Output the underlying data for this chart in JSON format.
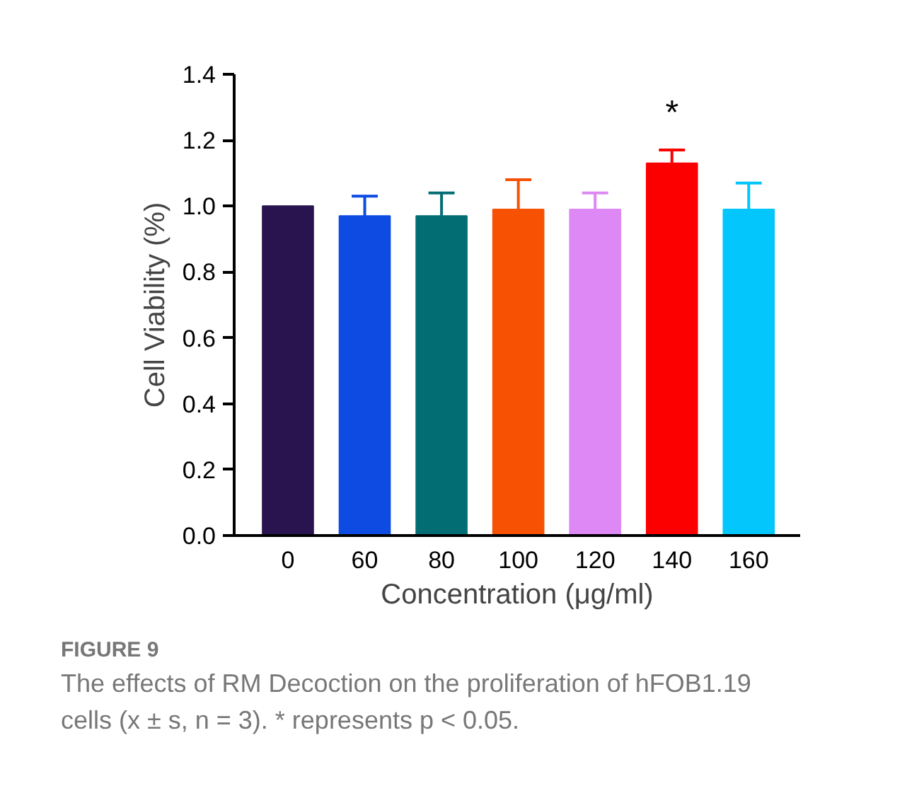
{
  "chart_data": {
    "type": "bar",
    "title": "FIGURE 9",
    "xlabel": "Concentration (μg/ml)",
    "ylabel": "Cell Viability (%)",
    "categories": [
      "0",
      "60",
      "80",
      "100",
      "120",
      "140",
      "160"
    ],
    "values": [
      1.0,
      0.97,
      0.97,
      0.99,
      0.99,
      1.13,
      0.99
    ],
    "errors": [
      null,
      [
        0.97,
        1.03
      ],
      [
        0.97,
        1.04
      ],
      [
        0.99,
        1.08
      ],
      [
        0.99,
        1.04
      ],
      [
        1.13,
        1.17
      ],
      [
        0.99,
        1.07
      ]
    ],
    "colors": [
      "#2a1450",
      "#0d4be3",
      "#026e74",
      "#f75104",
      "#dd88f4",
      "#fc0000",
      "#02c6fc"
    ],
    "ylim": [
      0,
      1.4
    ],
    "yticks": [
      {
        "value": 0,
        "label": "0.0"
      },
      0.2,
      0.4,
      0.6,
      0.8,
      {
        "value": 1.0,
        "label": "1.0"
      },
      1.2,
      1.4
    ],
    "grid": false,
    "annotations": [
      "*",
      "The effects of RM Decoction on the proliferation of hFOB1.19 cells (x ± s, n = 3). * represents p < 0.05."
    ]
  }
}
